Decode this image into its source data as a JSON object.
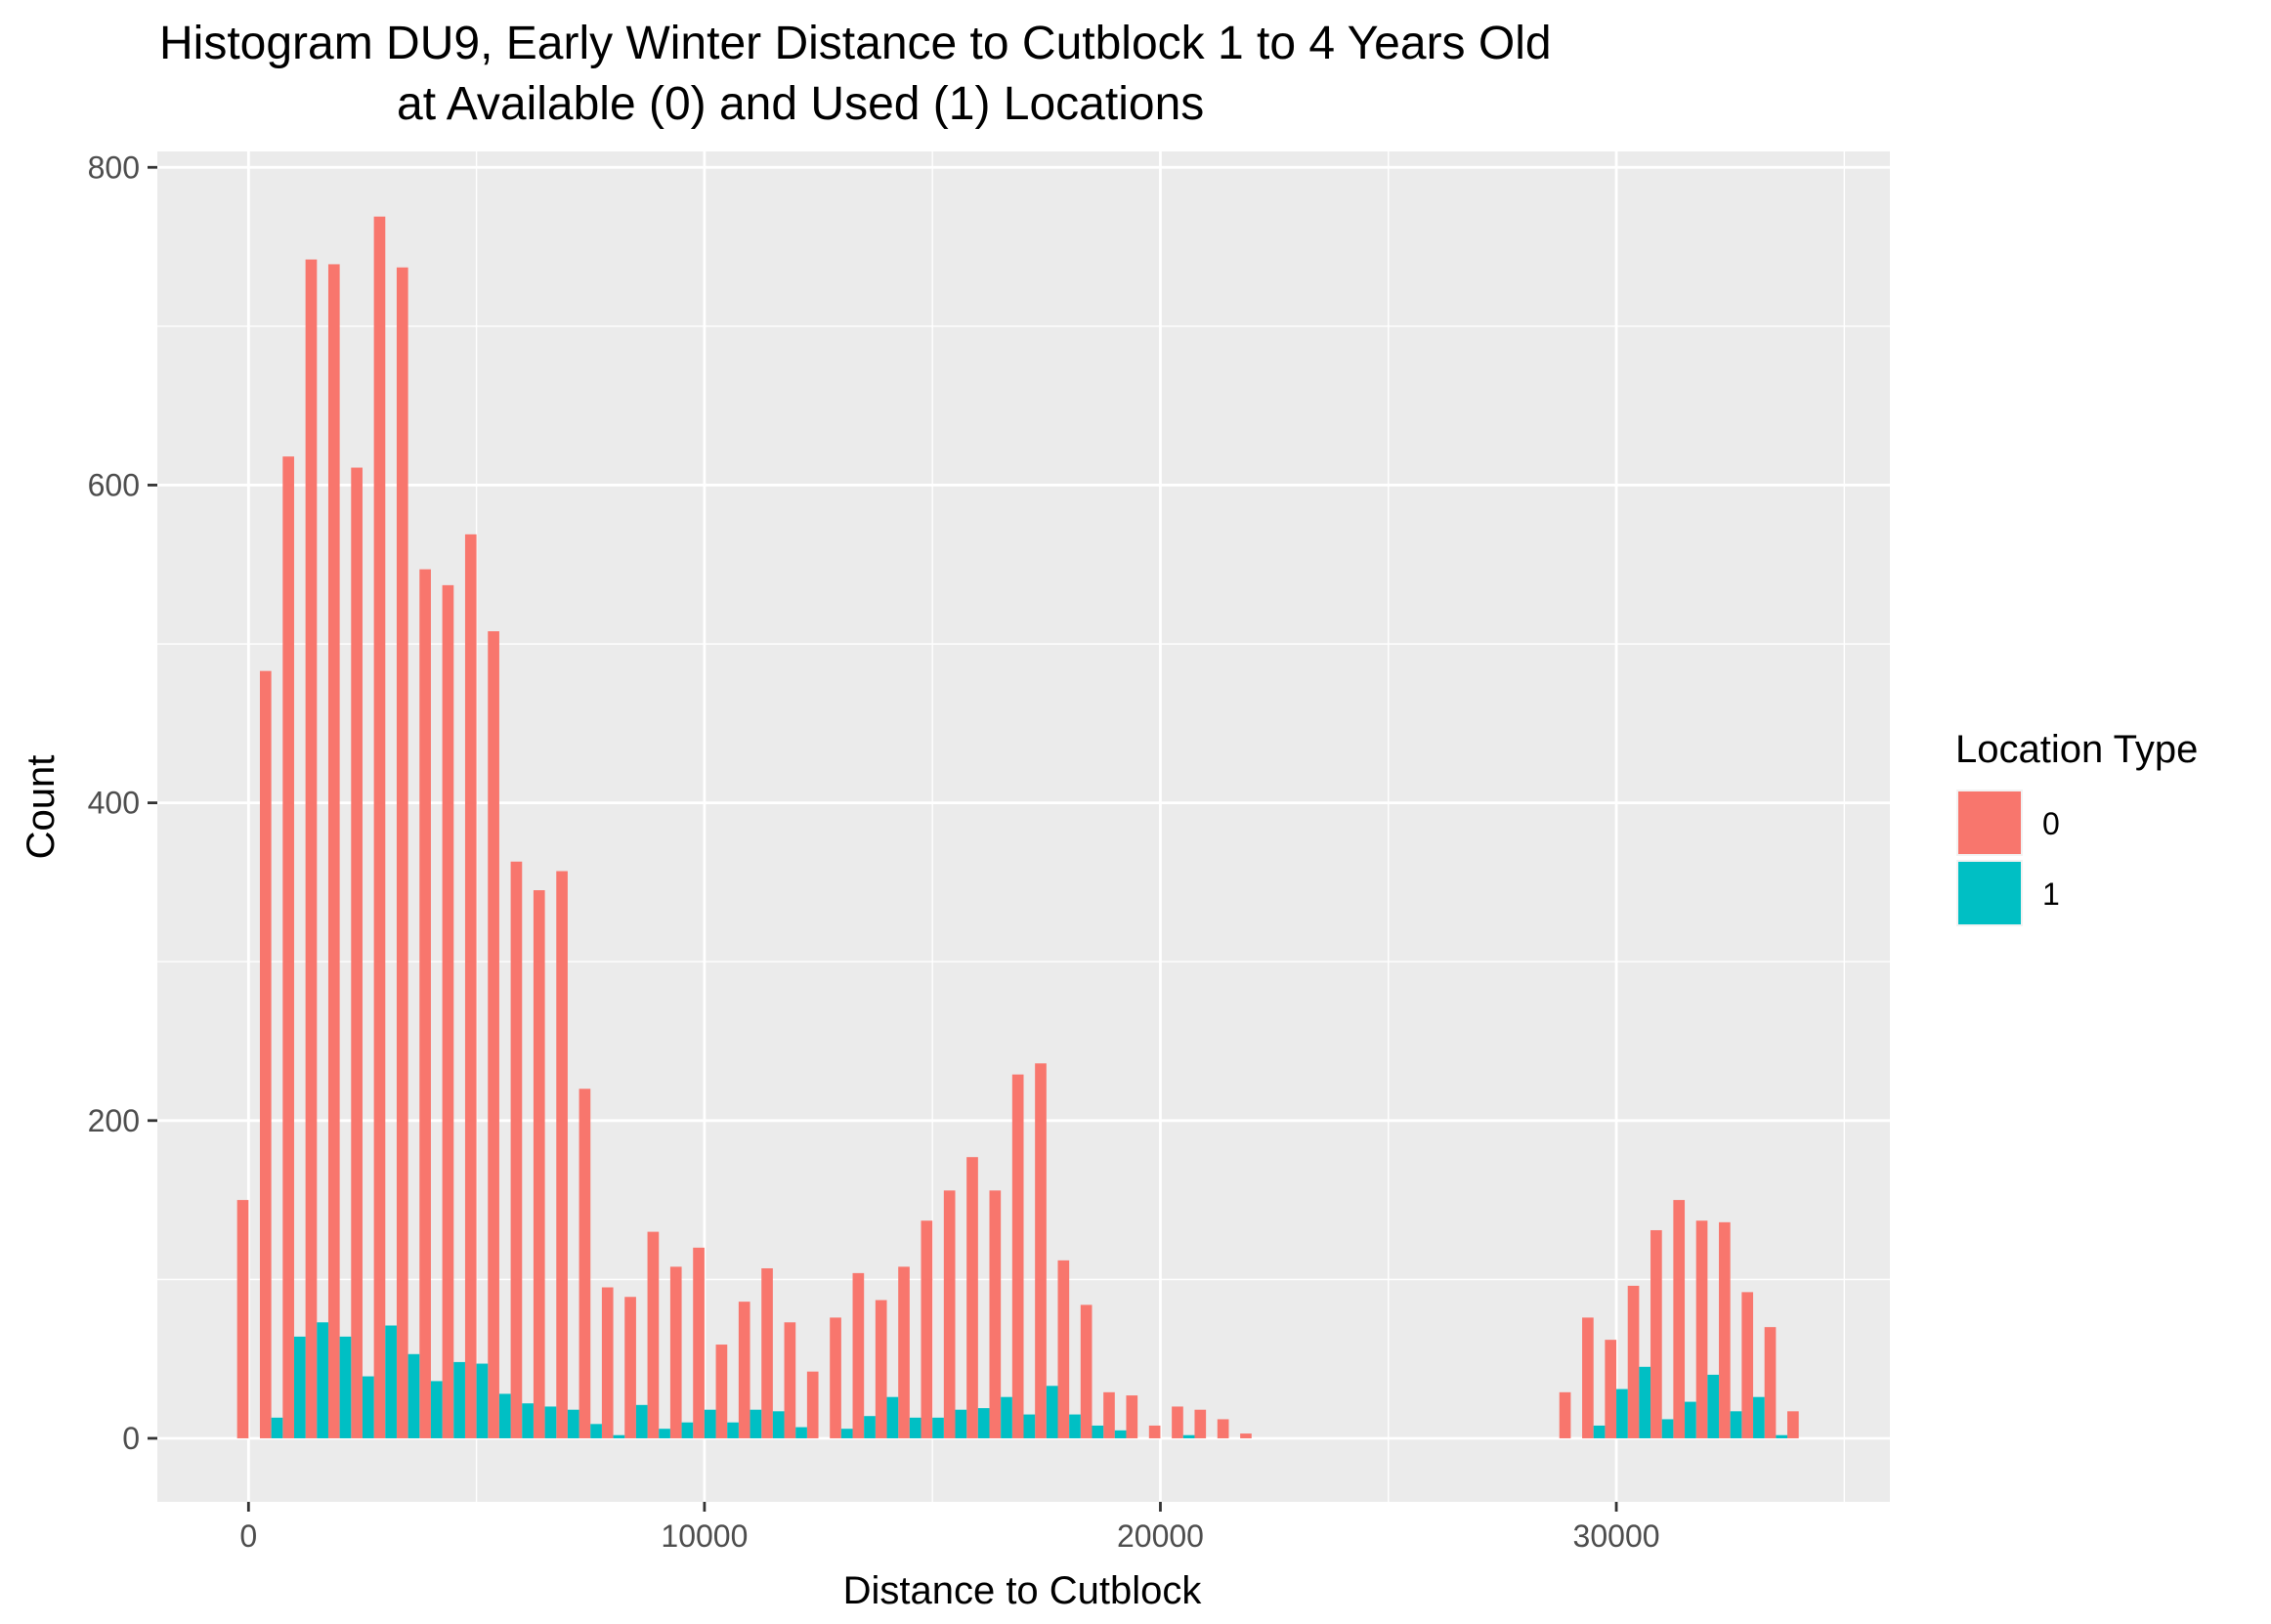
{
  "chart_data": {
    "type": "bar",
    "title": "Histogram DU9, Early Winter Distance to Cutblock 1 to 4 Years Old",
    "subtitle": "at Available (0) and Used (1) Locations",
    "xlabel": "Distance to Cutblock",
    "ylabel": "Count",
    "xlim": [
      -2000,
      36000
    ],
    "ylim": [
      -40,
      810
    ],
    "x_ticks": [
      0,
      10000,
      20000,
      30000
    ],
    "x_tick_labels": [
      "0",
      "10000",
      "20000",
      "30000"
    ],
    "y_ticks": [
      0,
      200,
      400,
      600,
      800
    ],
    "y_tick_labels": [
      "0",
      "200",
      "400",
      "600",
      "800"
    ],
    "grid": true,
    "bin_width": 500,
    "x": [
      0,
      500,
      1000,
      1500,
      2000,
      2500,
      3000,
      3500,
      4000,
      4500,
      5000,
      5500,
      6000,
      6500,
      7000,
      7500,
      8000,
      8500,
      9000,
      9500,
      10000,
      10500,
      11000,
      11500,
      12000,
      12500,
      13000,
      13500,
      14000,
      14500,
      15000,
      15500,
      16000,
      16500,
      17000,
      17500,
      18000,
      18500,
      19000,
      19500,
      20000,
      20500,
      21000,
      21500,
      22000,
      29000,
      29500,
      30000,
      30500,
      31000,
      31500,
      32000,
      32500,
      33000,
      33500,
      34000
    ],
    "legend": {
      "title": "Location Type",
      "position": "right"
    },
    "series": [
      {
        "name": "0",
        "color": "#F8766D",
        "values": [
          150,
          483,
          618,
          742,
          739,
          611,
          769,
          737,
          547,
          537,
          569,
          508,
          363,
          345,
          357,
          220,
          95,
          89,
          130,
          108,
          120,
          59,
          86,
          107,
          73,
          42,
          76,
          104,
          87,
          108,
          137,
          156,
          177,
          156,
          229,
          236,
          112,
          84,
          29,
          27,
          8,
          20,
          18,
          12,
          3,
          29,
          76,
          62,
          96,
          131,
          150,
          137,
          136,
          92,
          70,
          17
        ]
      },
      {
        "name": "1",
        "color": "#00BFC4",
        "values": [
          0,
          13,
          64,
          73,
          64,
          39,
          71,
          53,
          36,
          48,
          47,
          28,
          22,
          20,
          18,
          9,
          2,
          21,
          6,
          10,
          18,
          10,
          18,
          17,
          7,
          0,
          6,
          14,
          26,
          13,
          13,
          18,
          19,
          26,
          15,
          33,
          15,
          8,
          5,
          0,
          0,
          2,
          0,
          0,
          0,
          0,
          8,
          31,
          45,
          12,
          23,
          40,
          17,
          26,
          2,
          0
        ]
      }
    ]
  }
}
